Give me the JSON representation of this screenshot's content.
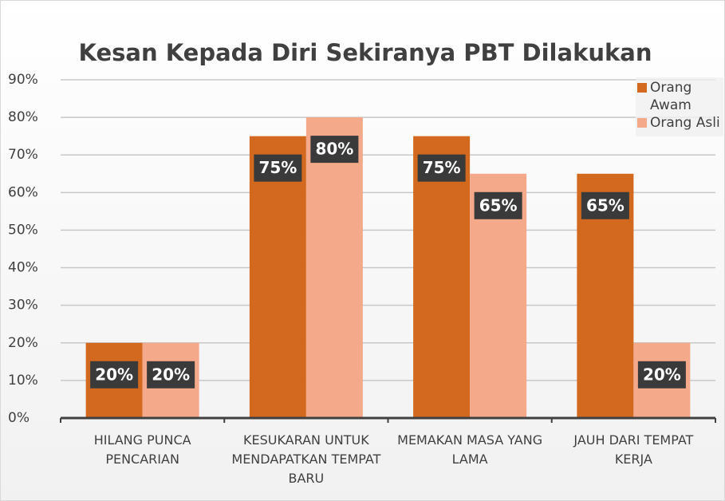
{
  "chart_data": {
    "type": "bar",
    "title": "Kesan Kepada Diri Sekiranya PBT Dilakukan",
    "categories": [
      "HILANG PUNCA PENCARIAN",
      "KESUKARAN UNTUK MENDAPATKAN TEMPAT BARU",
      "MEMAKAN MASA YANG LAMA",
      "JAUH DARI TEMPAT KERJA"
    ],
    "series": [
      {
        "name": "Orang Awam",
        "color": "#d2691e",
        "values": [
          20,
          75,
          75,
          65
        ],
        "value_labels": [
          "20%",
          "75%",
          "75%",
          "65%"
        ]
      },
      {
        "name": "Orang Asli",
        "color": "#f4a98a",
        "values": [
          20,
          80,
          65,
          20
        ],
        "value_labels": [
          "20%",
          "80%",
          "65%",
          "20%"
        ]
      }
    ],
    "ylim": [
      0,
      90
    ],
    "yticks": [
      {
        "value": 0,
        "label": "0%"
      },
      {
        "value": 10,
        "label": "10%"
      },
      {
        "value": 20,
        "label": "20%"
      },
      {
        "value": 30,
        "label": "30%"
      },
      {
        "value": 40,
        "label": "40%"
      },
      {
        "value": 50,
        "label": "50%"
      },
      {
        "value": 60,
        "label": "60%"
      },
      {
        "value": 70,
        "label": "70%"
      },
      {
        "value": 80,
        "label": "80%"
      },
      {
        "value": 90,
        "label": "90%"
      }
    ],
    "grid": true,
    "legend": "top-right"
  }
}
